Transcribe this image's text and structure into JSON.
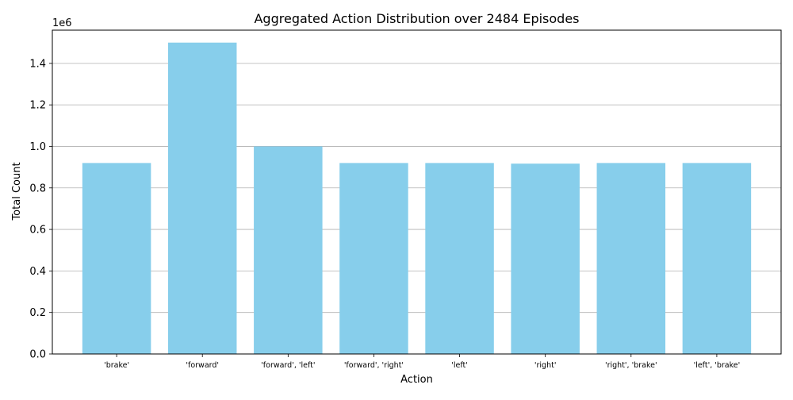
{
  "chart_data": {
    "type": "bar",
    "title": "Aggregated Action Distribution over 2484 Episodes",
    "xlabel": "Action",
    "ylabel": "Total Count",
    "y_scale_label": "1e6",
    "categories": [
      "'brake'",
      "'forward'",
      "'forward', 'left'",
      "'forward', 'right'",
      "'left'",
      "'right'",
      "'right', 'brake'",
      "'left', 'brake'"
    ],
    "values": [
      920000,
      1500000,
      1000000,
      920000,
      920000,
      917000,
      920000,
      920000
    ],
    "ylim": [
      0,
      1560000
    ],
    "y_ticks": [
      0,
      200000,
      400000,
      600000,
      800000,
      1000000,
      1200000,
      1400000
    ],
    "y_tick_labels": [
      "0.0",
      "0.2",
      "0.4",
      "0.6",
      "0.8",
      "1.0",
      "1.2",
      "1.4"
    ],
    "grid": "y-major",
    "bar_color": "#87ceeb",
    "grid_color": "#b0b0b0"
  }
}
